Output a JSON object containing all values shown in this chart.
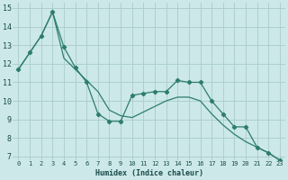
{
  "xlabel": "Humidex (Indice chaleur)",
  "background_color": "#cce8e8",
  "grid_color": "#aacccc",
  "line_color": "#2d7d6e",
  "xlim": [
    -0.5,
    23.5
  ],
  "ylim": [
    6.8,
    15.3
  ],
  "yticks": [
    7,
    8,
    9,
    10,
    11,
    12,
    13,
    14,
    15
  ],
  "xticks": [
    0,
    1,
    2,
    3,
    4,
    5,
    6,
    7,
    8,
    9,
    10,
    11,
    12,
    13,
    14,
    15,
    16,
    17,
    18,
    19,
    20,
    21,
    22,
    23
  ],
  "line1_x": [
    0,
    1,
    2,
    3,
    4,
    5,
    6,
    7,
    8,
    9,
    10,
    11,
    12,
    13,
    14,
    15,
    16,
    17,
    18,
    19,
    20,
    21,
    22,
    23
  ],
  "line1_y": [
    11.7,
    12.6,
    13.5,
    14.8,
    12.9,
    11.8,
    11.0,
    9.3,
    8.9,
    8.9,
    10.3,
    10.4,
    10.5,
    10.5,
    11.1,
    11.0,
    11.0,
    10.0,
    9.3,
    8.6,
    8.6,
    7.5,
    7.2,
    6.8
  ],
  "line2_x": [
    0,
    1,
    2,
    3,
    4,
    5,
    6,
    7,
    8,
    9,
    10,
    11,
    12,
    13,
    14,
    15,
    16,
    17,
    18,
    19,
    20,
    21,
    22,
    23
  ],
  "line2_y": [
    11.7,
    12.6,
    13.5,
    14.8,
    12.3,
    11.7,
    11.1,
    10.5,
    9.5,
    9.2,
    9.1,
    9.4,
    9.7,
    10.0,
    10.2,
    10.2,
    10.0,
    9.3,
    8.7,
    8.2,
    7.8,
    7.5,
    7.2,
    6.8
  ]
}
